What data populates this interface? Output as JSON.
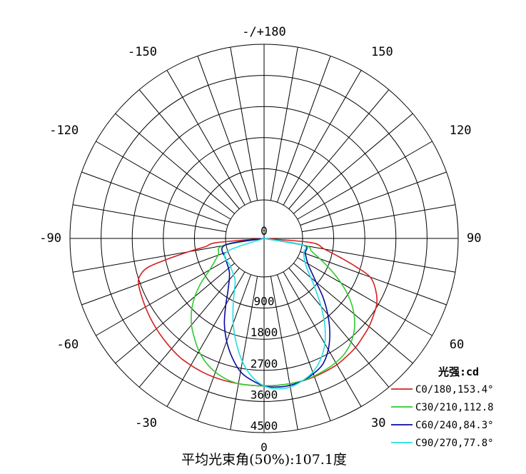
{
  "chart_data": {
    "type": "polar",
    "title": "",
    "unit_label": "光强:cd",
    "footer": "平均光束角(50%):107.1度",
    "top_label": "-/+180",
    "angle_labels": [
      {
        "angle": 150,
        "text": "150"
      },
      {
        "angle": 120,
        "text": "120"
      },
      {
        "angle": 90,
        "text": "90"
      },
      {
        "angle": 60,
        "text": "60"
      },
      {
        "angle": 30,
        "text": "30"
      },
      {
        "angle": 0,
        "text": "0"
      },
      {
        "angle": -30,
        "text": "-30"
      },
      {
        "angle": -60,
        "text": "-60"
      },
      {
        "angle": -90,
        "text": "-90"
      },
      {
        "angle": -120,
        "text": "-120"
      },
      {
        "angle": -150,
        "text": "-150"
      }
    ],
    "radial_ticks": [
      0,
      900,
      1800,
      2700,
      3600,
      4500
    ],
    "radial_tick_labels": [
      "0",
      "900",
      "1800",
      "2700",
      "3600",
      "4500"
    ],
    "rmax": 4500,
    "angle_step_deg": 10,
    "colors": {
      "C0": "#d42020",
      "C30": "#2ecc2e",
      "C60": "#0a0aa0",
      "C90": "#20e0e0"
    },
    "series": [
      {
        "name": "C0/180,153.4°",
        "color": "#d42020",
        "points": [
          [
            -90,
            0
          ],
          [
            -85,
            250
          ],
          [
            -82,
            600
          ],
          [
            -80,
            1100
          ],
          [
            -78,
            1700
          ],
          [
            -76,
            2350
          ],
          [
            -73,
            2650
          ],
          [
            -70,
            2750
          ],
          [
            -65,
            2800
          ],
          [
            -60,
            2850
          ],
          [
            -55,
            2900
          ],
          [
            -50,
            2950
          ],
          [
            -45,
            3000
          ],
          [
            -40,
            3050
          ],
          [
            -35,
            3100
          ],
          [
            -30,
            3120
          ],
          [
            -25,
            3140
          ],
          [
            -20,
            3150
          ],
          [
            -15,
            3150
          ],
          [
            -10,
            3150
          ],
          [
            -5,
            3150
          ],
          [
            0,
            3150
          ],
          [
            5,
            3150
          ],
          [
            10,
            3150
          ],
          [
            15,
            3150
          ],
          [
            20,
            3140
          ],
          [
            25,
            3120
          ],
          [
            30,
            3100
          ],
          [
            35,
            3050
          ],
          [
            40,
            3000
          ],
          [
            45,
            2920
          ],
          [
            50,
            2850
          ],
          [
            55,
            2750
          ],
          [
            60,
            2650
          ],
          [
            65,
            2450
          ],
          [
            70,
            2150
          ],
          [
            73,
            1650
          ],
          [
            76,
            1150
          ],
          [
            80,
            650
          ],
          [
            85,
            250
          ],
          [
            90,
            0
          ]
        ]
      },
      {
        "name": "C30/210,112.8",
        "color": "#2ecc2e",
        "points": [
          [
            -90,
            0
          ],
          [
            -80,
            100
          ],
          [
            -70,
            300
          ],
          [
            -60,
            700
          ],
          [
            -55,
            1100
          ],
          [
            -50,
            1500
          ],
          [
            -45,
            1850
          ],
          [
            -40,
            2150
          ],
          [
            -35,
            2400
          ],
          [
            -30,
            2650
          ],
          [
            -25,
            2850
          ],
          [
            -20,
            3000
          ],
          [
            -15,
            3100
          ],
          [
            -10,
            3150
          ],
          [
            -5,
            3150
          ],
          [
            0,
            3150
          ],
          [
            5,
            3150
          ],
          [
            10,
            3150
          ],
          [
            15,
            3150
          ],
          [
            20,
            3120
          ],
          [
            25,
            3080
          ],
          [
            30,
            3030
          ],
          [
            35,
            2950
          ],
          [
            40,
            2800
          ],
          [
            45,
            2580
          ],
          [
            50,
            2280
          ],
          [
            55,
            1900
          ],
          [
            60,
            1450
          ],
          [
            65,
            1000
          ],
          [
            70,
            600
          ],
          [
            75,
            300
          ],
          [
            80,
            100
          ],
          [
            90,
            0
          ]
        ]
      },
      {
        "name": "C60/240,84.3°",
        "color": "#0a0aa0",
        "points": [
          [
            -90,
            0
          ],
          [
            -80,
            50
          ],
          [
            -60,
            150
          ],
          [
            -45,
            300
          ],
          [
            -35,
            700
          ],
          [
            -30,
            1100
          ],
          [
            -25,
            1600
          ],
          [
            -20,
            2050
          ],
          [
            -15,
            2450
          ],
          [
            -10,
            2800
          ],
          [
            -5,
            3000
          ],
          [
            0,
            3150
          ],
          [
            5,
            3200
          ],
          [
            10,
            3200
          ],
          [
            15,
            3150
          ],
          [
            20,
            3050
          ],
          [
            25,
            2900
          ],
          [
            30,
            2600
          ],
          [
            35,
            2200
          ],
          [
            40,
            1750
          ],
          [
            45,
            1300
          ],
          [
            50,
            850
          ],
          [
            55,
            550
          ],
          [
            60,
            350
          ],
          [
            70,
            150
          ],
          [
            80,
            50
          ],
          [
            90,
            0
          ]
        ]
      },
      {
        "name": "C90/270,77.8°",
        "color": "#20e0e0",
        "points": [
          [
            -90,
            0
          ],
          [
            -70,
            50
          ],
          [
            -50,
            150
          ],
          [
            -35,
            350
          ],
          [
            -30,
            600
          ],
          [
            -25,
            1000
          ],
          [
            -20,
            1500
          ],
          [
            -15,
            2000
          ],
          [
            -10,
            2500
          ],
          [
            -5,
            2900
          ],
          [
            0,
            3150
          ],
          [
            5,
            3250
          ],
          [
            10,
            3250
          ],
          [
            15,
            3150
          ],
          [
            20,
            3000
          ],
          [
            25,
            2750
          ],
          [
            30,
            2400
          ],
          [
            35,
            1950
          ],
          [
            40,
            1450
          ],
          [
            45,
            1000
          ],
          [
            50,
            650
          ],
          [
            55,
            400
          ],
          [
            60,
            250
          ],
          [
            70,
            100
          ],
          [
            80,
            30
          ],
          [
            90,
            0
          ]
        ]
      }
    ]
  }
}
